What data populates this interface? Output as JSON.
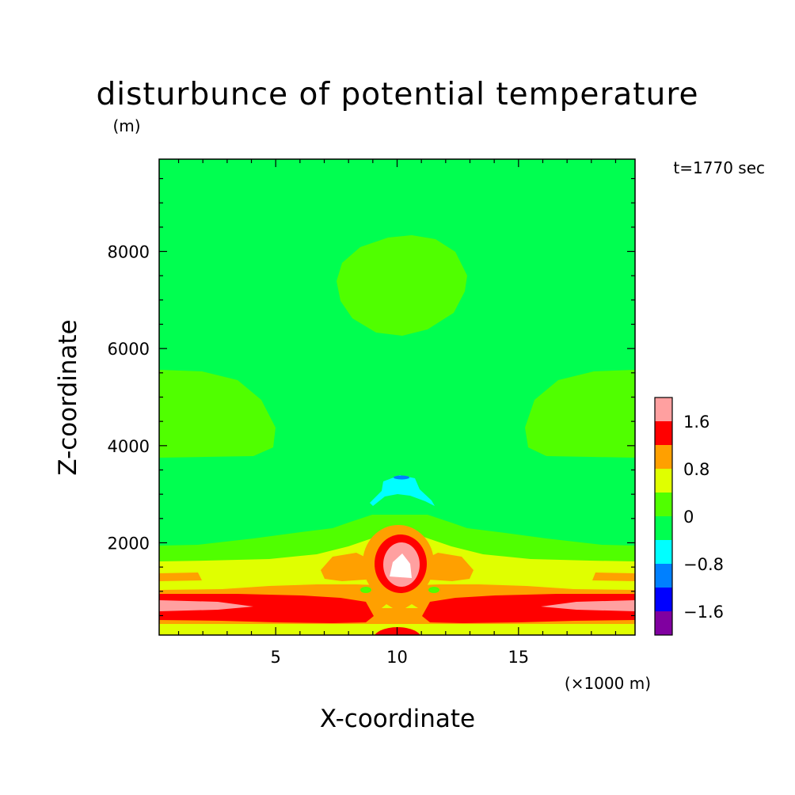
{
  "chart_data": {
    "type": "heatmap",
    "title": "disturbunce of potential temperature",
    "y_unit_label": "(m)",
    "x_unit_label": "(×1000 m)",
    "time_label": "t=1770 sec",
    "xlabel": "X-coordinate",
    "ylabel": "Z-coordinate",
    "xlim": [
      0.2,
      19.8
    ],
    "ylim": [
      100,
      9900
    ],
    "x_ticks": [
      5,
      10,
      15
    ],
    "y_ticks": [
      2000,
      4000,
      6000,
      8000
    ],
    "x_tick_labels": [
      "5",
      "10",
      "15"
    ],
    "y_tick_labels": [
      "2000",
      "4000",
      "6000",
      "8000"
    ],
    "colorbar": {
      "levels": [
        -2.0,
        -1.6,
        -1.2,
        -0.8,
        -0.4,
        0,
        0.4,
        0.8,
        1.2,
        1.6,
        2.0
      ],
      "colors": [
        "#8000a0",
        "#0000ff",
        "#0080ff",
        "#00ffff",
        "#00ff50",
        "#50ff00",
        "#e0ff00",
        "#ffa000",
        "#ff0000",
        "#ffa0a0"
      ],
      "tick_values": [
        -1.6,
        -0.8,
        0,
        0.8,
        1.6
      ],
      "tick_labels": [
        "−1.6",
        "−0.8",
        "0",
        "0.8",
        "1.6"
      ]
    },
    "above_top_level_color": "#ffffff",
    "background_color": "#00ff50",
    "grid": false,
    "legend": "colorbar right"
  }
}
